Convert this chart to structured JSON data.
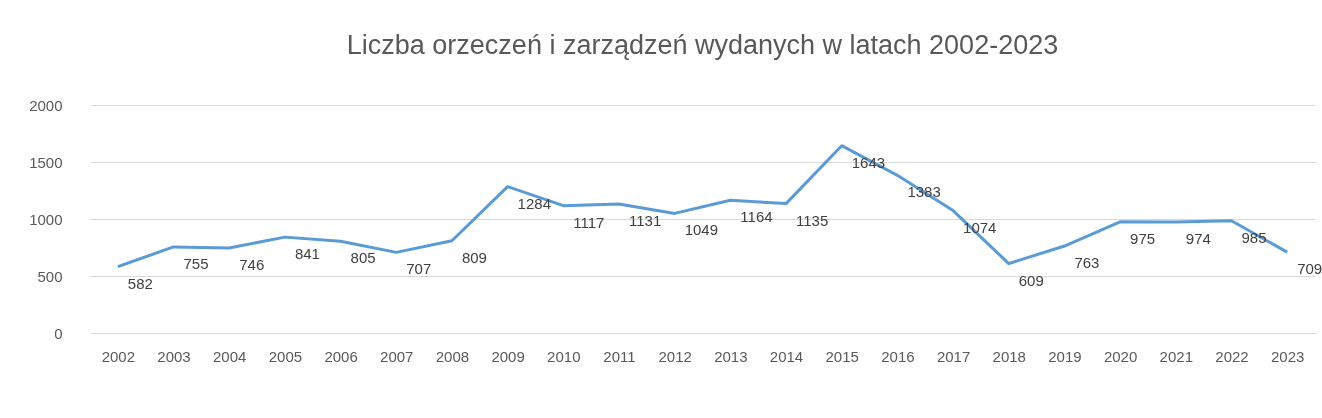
{
  "chart_data": {
    "type": "line",
    "title": "Liczba orzeczeń i zarządzeń wydanych w latach 2002-2023",
    "categories": [
      "2002",
      "2003",
      "2004",
      "2005",
      "2006",
      "2007",
      "2008",
      "2009",
      "2010",
      "2011",
      "2012",
      "2013",
      "2014",
      "2015",
      "2016",
      "2017",
      "2018",
      "2019",
      "2020",
      "2021",
      "2022",
      "2023"
    ],
    "series": [
      {
        "color": "#5b9bd5",
        "values": [
          582,
          755,
          746,
          841,
          805,
          707,
          809,
          1284,
          1117,
          1131,
          1049,
          1164,
          1135,
          1643,
          1383,
          1074,
          609,
          763,
          975,
          974,
          985,
          709
        ]
      }
    ],
    "ylim": [
      0,
      2000
    ],
    "yticks": [
      0,
      500,
      1000,
      1500,
      2000
    ],
    "grid": "y",
    "data_labels": true,
    "marker": "none",
    "line_style": "solid",
    "legend": false
  }
}
